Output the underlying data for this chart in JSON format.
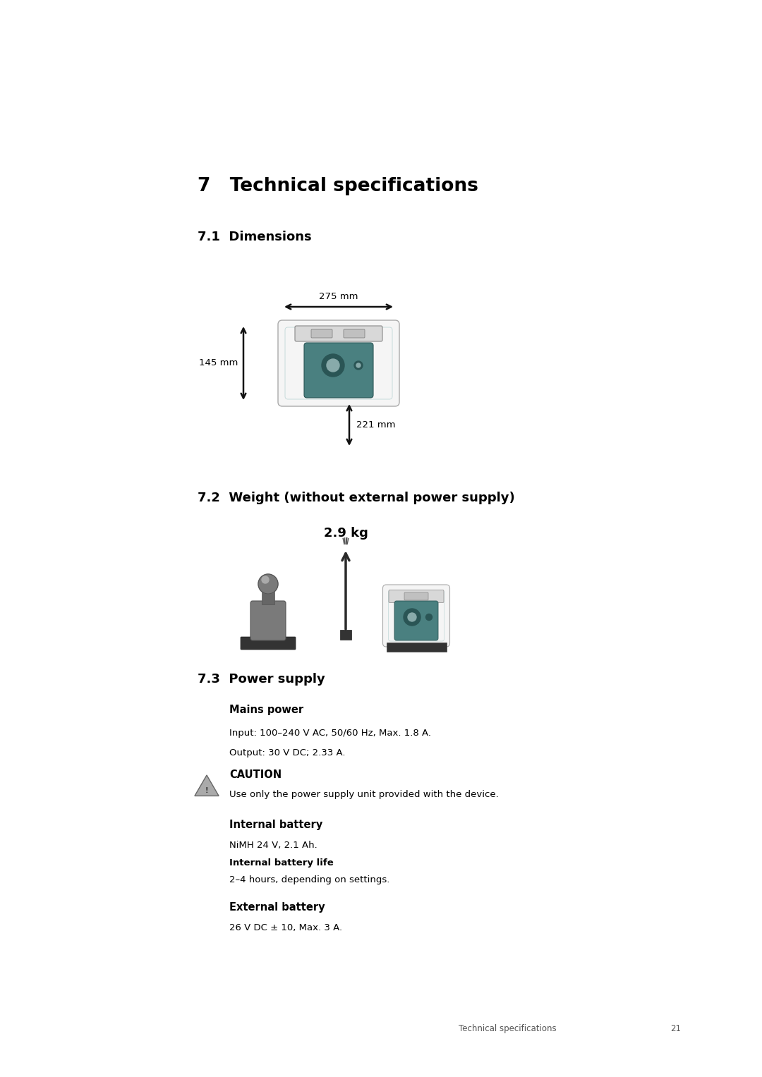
{
  "bg_color": "#ffffff",
  "page_width": 10.8,
  "page_height": 15.27,
  "title": "7   Technical specifications",
  "title_fontsize": 19,
  "section_71": "7.1  Dimensions",
  "section_71_fontsize": 13,
  "dim_275": "275 mm",
  "dim_145": "145 mm",
  "dim_221": "221 mm",
  "section_72": "7.2  Weight (without external power supply)",
  "section_72_fontsize": 13,
  "weight_val": "2.9 kg",
  "section_73": "7.3  Power supply",
  "section_73_fontsize": 13,
  "mains_power_label": "Mains power",
  "input_text": "Input: 100–240 V AC, 50/60 Hz, Max. 1.8 A.",
  "output_text": "Output: 30 V DC; 2.33 A.",
  "caution_label": "CAUTION",
  "caution_text": "Use only the power supply unit provided with the device.",
  "internal_battery_label": "Internal battery",
  "nimh_text": "NiMH 24 V, 2.1 Ah.",
  "int_battery_life_label": "Internal battery life",
  "battery_life_text": "2–4 hours, depending on settings.",
  "external_battery_label": "External battery",
  "ext_battery_text": "26 V DC ± 10, Max. 3 A.",
  "footer_text": "Technical specifications",
  "footer_page": "21",
  "text_color": "#000000",
  "device_body_color": "#f5f5f5",
  "device_edge_color": "#aaaaaa",
  "device_teal_color": "#4a8080",
  "device_teal_dark": "#2a5555",
  "device_strip_color": "#d8d8d8",
  "weight_gray": "#7a7a7a",
  "weight_dark": "#555555",
  "weight_base": "#333333",
  "arrow_color": "#111111"
}
